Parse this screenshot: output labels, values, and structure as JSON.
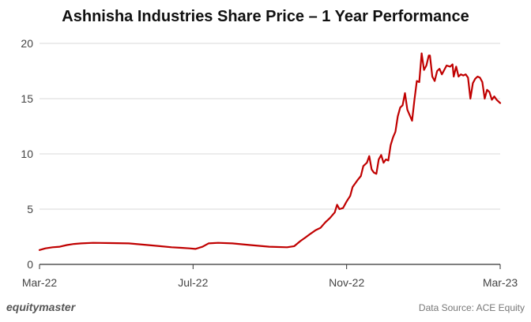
{
  "chart_data": {
    "type": "line",
    "title": "Ashnisha Industries Share Price – 1 Year Performance",
    "xlabel": "",
    "ylabel": "",
    "ylim": [
      0,
      20
    ],
    "yticks": [
      0,
      5,
      10,
      15,
      20
    ],
    "xticks": [
      "Mar-22",
      "Jul-22",
      "Nov-22",
      "Mar-23"
    ],
    "grid": true,
    "line_color": "#c00000",
    "series": [
      {
        "name": "",
        "points": [
          [
            "2022-03-01",
            1.3
          ],
          [
            "2022-03-06",
            1.45
          ],
          [
            "2022-03-12",
            1.55
          ],
          [
            "2022-03-18",
            1.6
          ],
          [
            "2022-03-24",
            1.75
          ],
          [
            "2022-03-30",
            1.85
          ],
          [
            "2022-04-05",
            1.9
          ],
          [
            "2022-04-15",
            1.95
          ],
          [
            "2022-04-30",
            1.93
          ],
          [
            "2022-05-15",
            1.9
          ],
          [
            "2022-05-31",
            1.75
          ],
          [
            "2022-06-10",
            1.65
          ],
          [
            "2022-06-20",
            1.55
          ],
          [
            "2022-06-28",
            1.5
          ],
          [
            "2022-07-05",
            1.45
          ],
          [
            "2022-07-10",
            1.4
          ],
          [
            "2022-07-16",
            1.6
          ],
          [
            "2022-07-21",
            1.9
          ],
          [
            "2022-07-29",
            1.95
          ],
          [
            "2022-08-10",
            1.9
          ],
          [
            "2022-08-25",
            1.75
          ],
          [
            "2022-09-10",
            1.6
          ],
          [
            "2022-09-25",
            1.55
          ],
          [
            "2022-10-01",
            1.65
          ],
          [
            "2022-10-06",
            2.1
          ],
          [
            "2022-10-10",
            2.4
          ],
          [
            "2022-10-15",
            2.8
          ],
          [
            "2022-10-19",
            3.1
          ],
          [
            "2022-10-23",
            3.3
          ],
          [
            "2022-10-27",
            3.8
          ],
          [
            "2022-10-31",
            4.2
          ],
          [
            "2022-11-04",
            4.7
          ],
          [
            "2022-11-06",
            5.4
          ],
          [
            "2022-11-08",
            5.0
          ],
          [
            "2022-11-11",
            5.1
          ],
          [
            "2022-11-14",
            5.7
          ],
          [
            "2022-11-17",
            6.2
          ],
          [
            "2022-11-19",
            7.0
          ],
          [
            "2022-11-23",
            7.6
          ],
          [
            "2022-11-26",
            8.0
          ],
          [
            "2022-11-28",
            8.9
          ],
          [
            "2022-12-01",
            9.2
          ],
          [
            "2022-12-03",
            9.8
          ],
          [
            "2022-12-05",
            8.6
          ],
          [
            "2022-12-07",
            8.3
          ],
          [
            "2022-12-09",
            8.2
          ],
          [
            "2022-12-11",
            9.5
          ],
          [
            "2022-12-13",
            9.9
          ],
          [
            "2022-12-15",
            9.2
          ],
          [
            "2022-12-17",
            9.5
          ],
          [
            "2022-12-19",
            9.4
          ],
          [
            "2022-12-21",
            10.8
          ],
          [
            "2022-12-23",
            11.5
          ],
          [
            "2022-12-25",
            12.0
          ],
          [
            "2022-12-27",
            13.4
          ],
          [
            "2022-12-29",
            14.2
          ],
          [
            "2022-12-31",
            14.4
          ],
          [
            "2023-01-02",
            15.5
          ],
          [
            "2023-01-04",
            14.0
          ],
          [
            "2023-01-06",
            13.5
          ],
          [
            "2023-01-08",
            13.0
          ],
          [
            "2023-01-10",
            14.9
          ],
          [
            "2023-01-12",
            16.6
          ],
          [
            "2023-01-14",
            16.5
          ],
          [
            "2023-01-16",
            19.1
          ],
          [
            "2023-01-18",
            17.6
          ],
          [
            "2023-01-20",
            18.0
          ],
          [
            "2023-01-22",
            18.9
          ],
          [
            "2023-01-23",
            18.9
          ],
          [
            "2023-01-25",
            17.0
          ],
          [
            "2023-01-27",
            16.6
          ],
          [
            "2023-01-29",
            17.5
          ],
          [
            "2023-01-31",
            17.7
          ],
          [
            "2023-02-02",
            17.2
          ],
          [
            "2023-02-04",
            17.6
          ],
          [
            "2023-02-06",
            18.0
          ],
          [
            "2023-02-09",
            17.9
          ],
          [
            "2023-02-11",
            18.1
          ],
          [
            "2023-02-12",
            17.0
          ],
          [
            "2023-02-14",
            17.9
          ],
          [
            "2023-02-16",
            17.0
          ],
          [
            "2023-02-18",
            17.2
          ],
          [
            "2023-02-20",
            17.1
          ],
          [
            "2023-02-22",
            17.2
          ],
          [
            "2023-02-24",
            16.9
          ],
          [
            "2023-02-26",
            15.0
          ],
          [
            "2023-02-28",
            16.4
          ],
          [
            "2023-03-02",
            16.8
          ],
          [
            "2023-03-04",
            17.0
          ],
          [
            "2023-03-06",
            16.9
          ],
          [
            "2023-03-08",
            16.5
          ],
          [
            "2023-03-10",
            15.0
          ],
          [
            "2023-03-12",
            15.8
          ],
          [
            "2023-03-14",
            15.6
          ],
          [
            "2023-03-16",
            14.9
          ],
          [
            "2023-03-18",
            15.2
          ],
          [
            "2023-03-20",
            14.9
          ],
          [
            "2023-03-23",
            14.6
          ]
        ]
      }
    ]
  },
  "footer": {
    "brand": "equitymaster",
    "source": "Data Source: ACE Equity"
  }
}
